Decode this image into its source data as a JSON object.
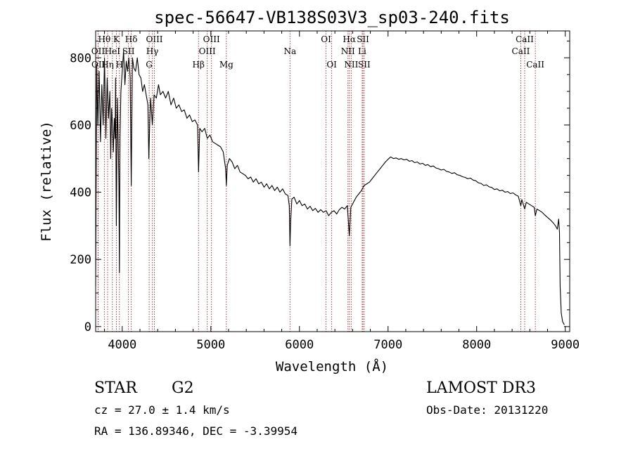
{
  "chart_data": {
    "type": "line",
    "title": "spec-56647-VB138S03V3_sp03-240.fits",
    "xlabel": "Wavelength (Å)",
    "ylabel": "Flux (relative)",
    "xlim": [
      3700,
      9050
    ],
    "ylim": [
      -15,
      880
    ],
    "x_ticks": [
      4000,
      5000,
      6000,
      7000,
      8000,
      9000
    ],
    "y_ticks": [
      0,
      200,
      400,
      600,
      800
    ],
    "grid": false,
    "line_color": "#000000",
    "marker_color": "#b22222",
    "series": [
      {
        "name": "flux",
        "points": [
          [
            3700,
            120
          ],
          [
            3712,
            780
          ],
          [
            3725,
            600
          ],
          [
            3740,
            760
          ],
          [
            3755,
            550
          ],
          [
            3770,
            720
          ],
          [
            3785,
            600
          ],
          [
            3800,
            800
          ],
          [
            3815,
            560
          ],
          [
            3830,
            740
          ],
          [
            3845,
            620
          ],
          [
            3860,
            700
          ],
          [
            3870,
            500
          ],
          [
            3880,
            650
          ],
          [
            3890,
            600
          ],
          [
            3900,
            520
          ],
          [
            3910,
            620
          ],
          [
            3920,
            560
          ],
          [
            3925,
            740
          ],
          [
            3933,
            300
          ],
          [
            3945,
            680
          ],
          [
            3955,
            550
          ],
          [
            3963,
            420
          ],
          [
            3968,
            160
          ],
          [
            3975,
            560
          ],
          [
            3985,
            700
          ],
          [
            4000,
            760
          ],
          [
            4015,
            820
          ],
          [
            4030,
            720
          ],
          [
            4045,
            790
          ],
          [
            4060,
            760
          ],
          [
            4075,
            800
          ],
          [
            4090,
            740
          ],
          [
            4102,
            420
          ],
          [
            4115,
            800
          ],
          [
            4130,
            770
          ],
          [
            4150,
            760
          ],
          [
            4170,
            800
          ],
          [
            4190,
            750
          ],
          [
            4210,
            740
          ],
          [
            4230,
            700
          ],
          [
            4250,
            720
          ],
          [
            4270,
            690
          ],
          [
            4290,
            660
          ],
          [
            4300,
            500
          ],
          [
            4310,
            600
          ],
          [
            4320,
            680
          ],
          [
            4340,
            600
          ],
          [
            4360,
            690
          ],
          [
            4385,
            680
          ],
          [
            4410,
            720
          ],
          [
            4430,
            690
          ],
          [
            4460,
            700
          ],
          [
            4490,
            680
          ],
          [
            4520,
            700
          ],
          [
            4550,
            660
          ],
          [
            4580,
            680
          ],
          [
            4610,
            650
          ],
          [
            4640,
            660
          ],
          [
            4670,
            640
          ],
          [
            4700,
            645
          ],
          [
            4730,
            620
          ],
          [
            4760,
            630
          ],
          [
            4790,
            610
          ],
          [
            4820,
            615
          ],
          [
            4850,
            600
          ],
          [
            4861,
            460
          ],
          [
            4875,
            590
          ],
          [
            4900,
            580
          ],
          [
            4930,
            590
          ],
          [
            4960,
            560
          ],
          [
            4990,
            570
          ],
          [
            5020,
            550
          ],
          [
            5050,
            545
          ],
          [
            5080,
            540
          ],
          [
            5110,
            535
          ],
          [
            5140,
            520
          ],
          [
            5167,
            470
          ],
          [
            5175,
            420
          ],
          [
            5185,
            480
          ],
          [
            5210,
            500
          ],
          [
            5240,
            490
          ],
          [
            5270,
            470
          ],
          [
            5300,
            480
          ],
          [
            5330,
            460
          ],
          [
            5360,
            455
          ],
          [
            5390,
            450
          ],
          [
            5420,
            440
          ],
          [
            5450,
            445
          ],
          [
            5480,
            430
          ],
          [
            5510,
            440
          ],
          [
            5540,
            425
          ],
          [
            5570,
            430
          ],
          [
            5600,
            415
          ],
          [
            5630,
            425
          ],
          [
            5660,
            410
          ],
          [
            5690,
            420
          ],
          [
            5720,
            405
          ],
          [
            5750,
            415
          ],
          [
            5780,
            400
          ],
          [
            5810,
            410
          ],
          [
            5840,
            395
          ],
          [
            5870,
            390
          ],
          [
            5885,
            360
          ],
          [
            5893,
            240
          ],
          [
            5900,
            310
          ],
          [
            5915,
            380
          ],
          [
            5940,
            385
          ],
          [
            5970,
            365
          ],
          [
            6000,
            375
          ],
          [
            6030,
            360
          ],
          [
            6060,
            365
          ],
          [
            6090,
            350
          ],
          [
            6120,
            358
          ],
          [
            6150,
            345
          ],
          [
            6180,
            352
          ],
          [
            6210,
            340
          ],
          [
            6240,
            348
          ],
          [
            6270,
            340
          ],
          [
            6300,
            345
          ],
          [
            6330,
            330
          ],
          [
            6360,
            340
          ],
          [
            6390,
            345
          ],
          [
            6420,
            335
          ],
          [
            6450,
            348
          ],
          [
            6480,
            355
          ],
          [
            6510,
            350
          ],
          [
            6540,
            360
          ],
          [
            6563,
            270
          ],
          [
            6580,
            355
          ],
          [
            6610,
            370
          ],
          [
            6640,
            385
          ],
          [
            6670,
            395
          ],
          [
            6700,
            405
          ],
          [
            6730,
            420
          ],
          [
            6760,
            425
          ],
          [
            6790,
            430
          ],
          [
            6820,
            440
          ],
          [
            6850,
            450
          ],
          [
            6880,
            460
          ],
          [
            6910,
            470
          ],
          [
            6940,
            480
          ],
          [
            6970,
            490
          ],
          [
            7000,
            498
          ],
          [
            7030,
            505
          ],
          [
            7060,
            500
          ],
          [
            7090,
            502
          ],
          [
            7120,
            498
          ],
          [
            7150,
            500
          ],
          [
            7180,
            496
          ],
          [
            7210,
            498
          ],
          [
            7240,
            492
          ],
          [
            7270,
            494
          ],
          [
            7300,
            488
          ],
          [
            7330,
            490
          ],
          [
            7360,
            484
          ],
          [
            7390,
            486
          ],
          [
            7420,
            480
          ],
          [
            7450,
            482
          ],
          [
            7480,
            476
          ],
          [
            7510,
            478
          ],
          [
            7540,
            472
          ],
          [
            7570,
            470
          ],
          [
            7600,
            466
          ],
          [
            7630,
            468
          ],
          [
            7660,
            462
          ],
          [
            7690,
            460
          ],
          [
            7720,
            456
          ],
          [
            7750,
            458
          ],
          [
            7780,
            452
          ],
          [
            7810,
            450
          ],
          [
            7840,
            446
          ],
          [
            7870,
            444
          ],
          [
            7900,
            440
          ],
          [
            7930,
            442
          ],
          [
            7960,
            436
          ],
          [
            7990,
            434
          ],
          [
            8020,
            428
          ],
          [
            8050,
            426
          ],
          [
            8080,
            420
          ],
          [
            8110,
            422
          ],
          [
            8140,
            416
          ],
          [
            8170,
            414
          ],
          [
            8200,
            408
          ],
          [
            8230,
            410
          ],
          [
            8260,
            404
          ],
          [
            8290,
            406
          ],
          [
            8320,
            400
          ],
          [
            8350,
            402
          ],
          [
            8380,
            396
          ],
          [
            8410,
            398
          ],
          [
            8440,
            392
          ],
          [
            8470,
            388
          ],
          [
            8498,
            360
          ],
          [
            8510,
            378
          ],
          [
            8542,
            350
          ],
          [
            8560,
            370
          ],
          [
            8590,
            365
          ],
          [
            8620,
            360
          ],
          [
            8650,
            355
          ],
          [
            8662,
            330
          ],
          [
            8680,
            350
          ],
          [
            8710,
            345
          ],
          [
            8740,
            340
          ],
          [
            8770,
            332
          ],
          [
            8800,
            325
          ],
          [
            8830,
            318
          ],
          [
            8860,
            310
          ],
          [
            8890,
            300
          ],
          [
            8910,
            290
          ],
          [
            8925,
            320
          ],
          [
            8935,
            280
          ],
          [
            8942,
            120
          ],
          [
            8955,
            40
          ],
          [
            8970,
            15
          ],
          [
            8990,
            5
          ]
        ]
      }
    ],
    "spectral_lines": [
      {
        "label": "Hθ",
        "wave": 3798,
        "row": 0
      },
      {
        "label": "OII",
        "wave": 3727,
        "row": 1
      },
      {
        "label": "OII",
        "wave": 3729,
        "row": 2
      },
      {
        "label": "Hη",
        "wave": 3835,
        "row": 2
      },
      {
        "label": "K",
        "wave": 3934,
        "row": 0
      },
      {
        "label": "HeI",
        "wave": 3889,
        "row": 1
      },
      {
        "label": "H",
        "wave": 3968,
        "row": 2
      },
      {
        "label": "Hδ",
        "wave": 4102,
        "row": 0
      },
      {
        "label": "SII",
        "wave": 4070,
        "row": 1
      },
      {
        "label": "OIII",
        "wave": 4363,
        "row": 0
      },
      {
        "label": "Hγ",
        "wave": 4340,
        "row": 1
      },
      {
        "label": "G",
        "wave": 4304,
        "row": 2
      },
      {
        "label": "Hβ",
        "wave": 4861,
        "row": 2
      },
      {
        "label": "OIII",
        "wave": 5007,
        "row": 0
      },
      {
        "label": "OIII",
        "wave": 4959,
        "row": 1
      },
      {
        "label": "Mg",
        "wave": 5175,
        "row": 2
      },
      {
        "label": "Na",
        "wave": 5893,
        "row": 1
      },
      {
        "label": "OI",
        "wave": 6300,
        "row": 0
      },
      {
        "label": "OI",
        "wave": 6364,
        "row": 2
      },
      {
        "label": "Hα",
        "wave": 6563,
        "row": 0
      },
      {
        "label": "NII",
        "wave": 6548,
        "row": 1
      },
      {
        "label": "NII",
        "wave": 6584,
        "row": 2
      },
      {
        "label": "SII",
        "wave": 6717,
        "row": 0
      },
      {
        "label": "Li",
        "wave": 6708,
        "row": 1
      },
      {
        "label": "SII",
        "wave": 6731,
        "row": 2
      },
      {
        "label": "CaII",
        "wave": 8542,
        "row": 0
      },
      {
        "label": "CaII",
        "wave": 8498,
        "row": 1
      },
      {
        "label": "CaII",
        "wave": 8662,
        "row": 2
      }
    ]
  },
  "info": {
    "object_class": "STAR",
    "subclass": "G2",
    "survey": "LAMOST DR3",
    "redshift": "cz = 27.0 ± 1.4 km/s",
    "obs_date": "Obs-Date: 20131220",
    "coords": "RA = 136.89346, DEC =  -3.39954"
  }
}
